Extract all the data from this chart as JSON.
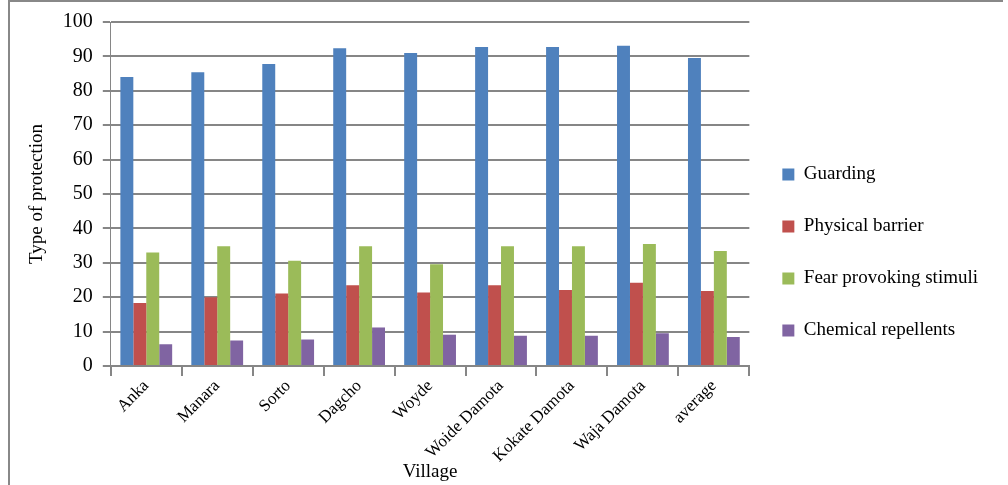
{
  "chart_data": {
    "type": "bar",
    "xlabel": "Village",
    "ylabel": "Type of protection",
    "categories": [
      "Anka",
      "Manara",
      "Sorto",
      "Dagcho",
      "Woyde",
      "Woide Damota",
      "Kokate Damota",
      "Waja Damota",
      "average"
    ],
    "series": [
      {
        "name": "Guarding",
        "color": "#4f81bd",
        "values": [
          84.0,
          85.4,
          87.8,
          92.4,
          91.0,
          92.7,
          92.7,
          93.1,
          89.5
        ]
      },
      {
        "name": "Physical barrier",
        "color": "#c0504d",
        "values": [
          18.3,
          20.0,
          21.1,
          23.5,
          21.4,
          23.5,
          22.1,
          24.2,
          21.8
        ]
      },
      {
        "name": "Fear provoking stimuli",
        "color": "#9bbb59",
        "values": [
          33.0,
          34.8,
          30.6,
          34.8,
          29.6,
          34.8,
          34.8,
          35.5,
          33.4
        ]
      },
      {
        "name": "Chemical repellents",
        "color": "#8064a2",
        "values": [
          6.3,
          7.4,
          7.7,
          11.2,
          9.1,
          8.8,
          8.8,
          9.5,
          8.4
        ]
      }
    ],
    "ylim": [
      0,
      100
    ],
    "yticks": [
      0,
      10,
      20,
      30,
      40,
      50,
      60,
      70,
      80,
      90,
      100
    ],
    "grid": "y",
    "legend": "right"
  }
}
